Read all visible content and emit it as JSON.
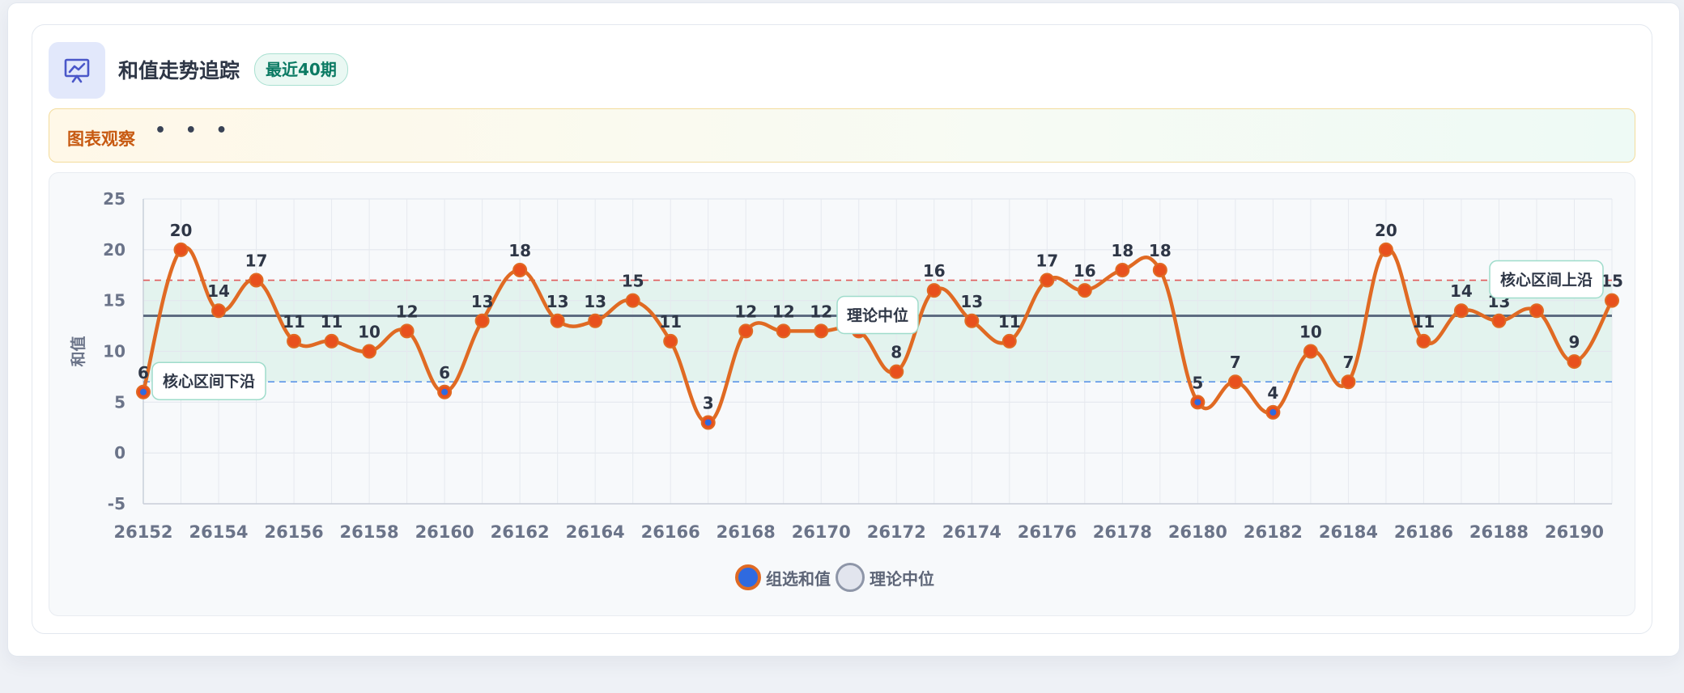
{
  "header": {
    "icon": "presentation-chart-icon",
    "title": "和值走势追踪",
    "badge": "最近40期"
  },
  "observation": {
    "label": "图表观察",
    "dots": "• • •"
  },
  "colors": {
    "line": "#e06a23",
    "point_fill": "#e8501d",
    "point_inner_low": "#2f6ae0",
    "upper_line": "#e05a5a",
    "lower_line": "#5c95e8",
    "median_line": "#5d6b80",
    "band": "#dff2eb"
  },
  "chart_data": {
    "type": "line",
    "title": "",
    "xlabel": "",
    "ylabel": "和值",
    "ylim": [
      -5,
      25
    ],
    "yticks": [
      -5,
      0,
      5,
      10,
      15,
      20,
      25
    ],
    "x": [
      26152,
      26153,
      26154,
      26155,
      26156,
      26157,
      26158,
      26159,
      26160,
      26161,
      26162,
      26163,
      26164,
      26165,
      26166,
      26167,
      26168,
      26169,
      26170,
      26171,
      26172,
      26173,
      26174,
      26175,
      26176,
      26177,
      26178,
      26179,
      26180,
      26181,
      26182,
      26183,
      26184,
      26185,
      26186,
      26187,
      26188,
      26189,
      26190,
      26191
    ],
    "xticks": [
      26152,
      26154,
      26156,
      26158,
      26160,
      26162,
      26164,
      26166,
      26168,
      26170,
      26172,
      26174,
      26176,
      26178,
      26180,
      26182,
      26184,
      26186,
      26188,
      26190
    ],
    "series": [
      {
        "name": "组选和值",
        "values": [
          6,
          20,
          14,
          17,
          11,
          11,
          10,
          12,
          6,
          13,
          18,
          13,
          13,
          15,
          11,
          3,
          12,
          12,
          12,
          12,
          8,
          16,
          13,
          11,
          17,
          16,
          18,
          18,
          5,
          7,
          4,
          10,
          7,
          20,
          11,
          14,
          13,
          14,
          9,
          15
        ]
      }
    ],
    "reference_lines": {
      "median": {
        "name": "理论中位",
        "value": 13.5
      },
      "upper": {
        "label": "核心区间上沿",
        "value": 17
      },
      "lower": {
        "label": "核心区间下沿",
        "value": 7
      }
    },
    "band": [
      7,
      17
    ],
    "grid": true,
    "legend_position": "bottom-center"
  },
  "legend": {
    "main": "组选和值",
    "ref": "理论中位"
  },
  "annotations": {
    "upper": "核心区间上沿",
    "lower": "核心区间下沿",
    "median": "理论中位"
  }
}
